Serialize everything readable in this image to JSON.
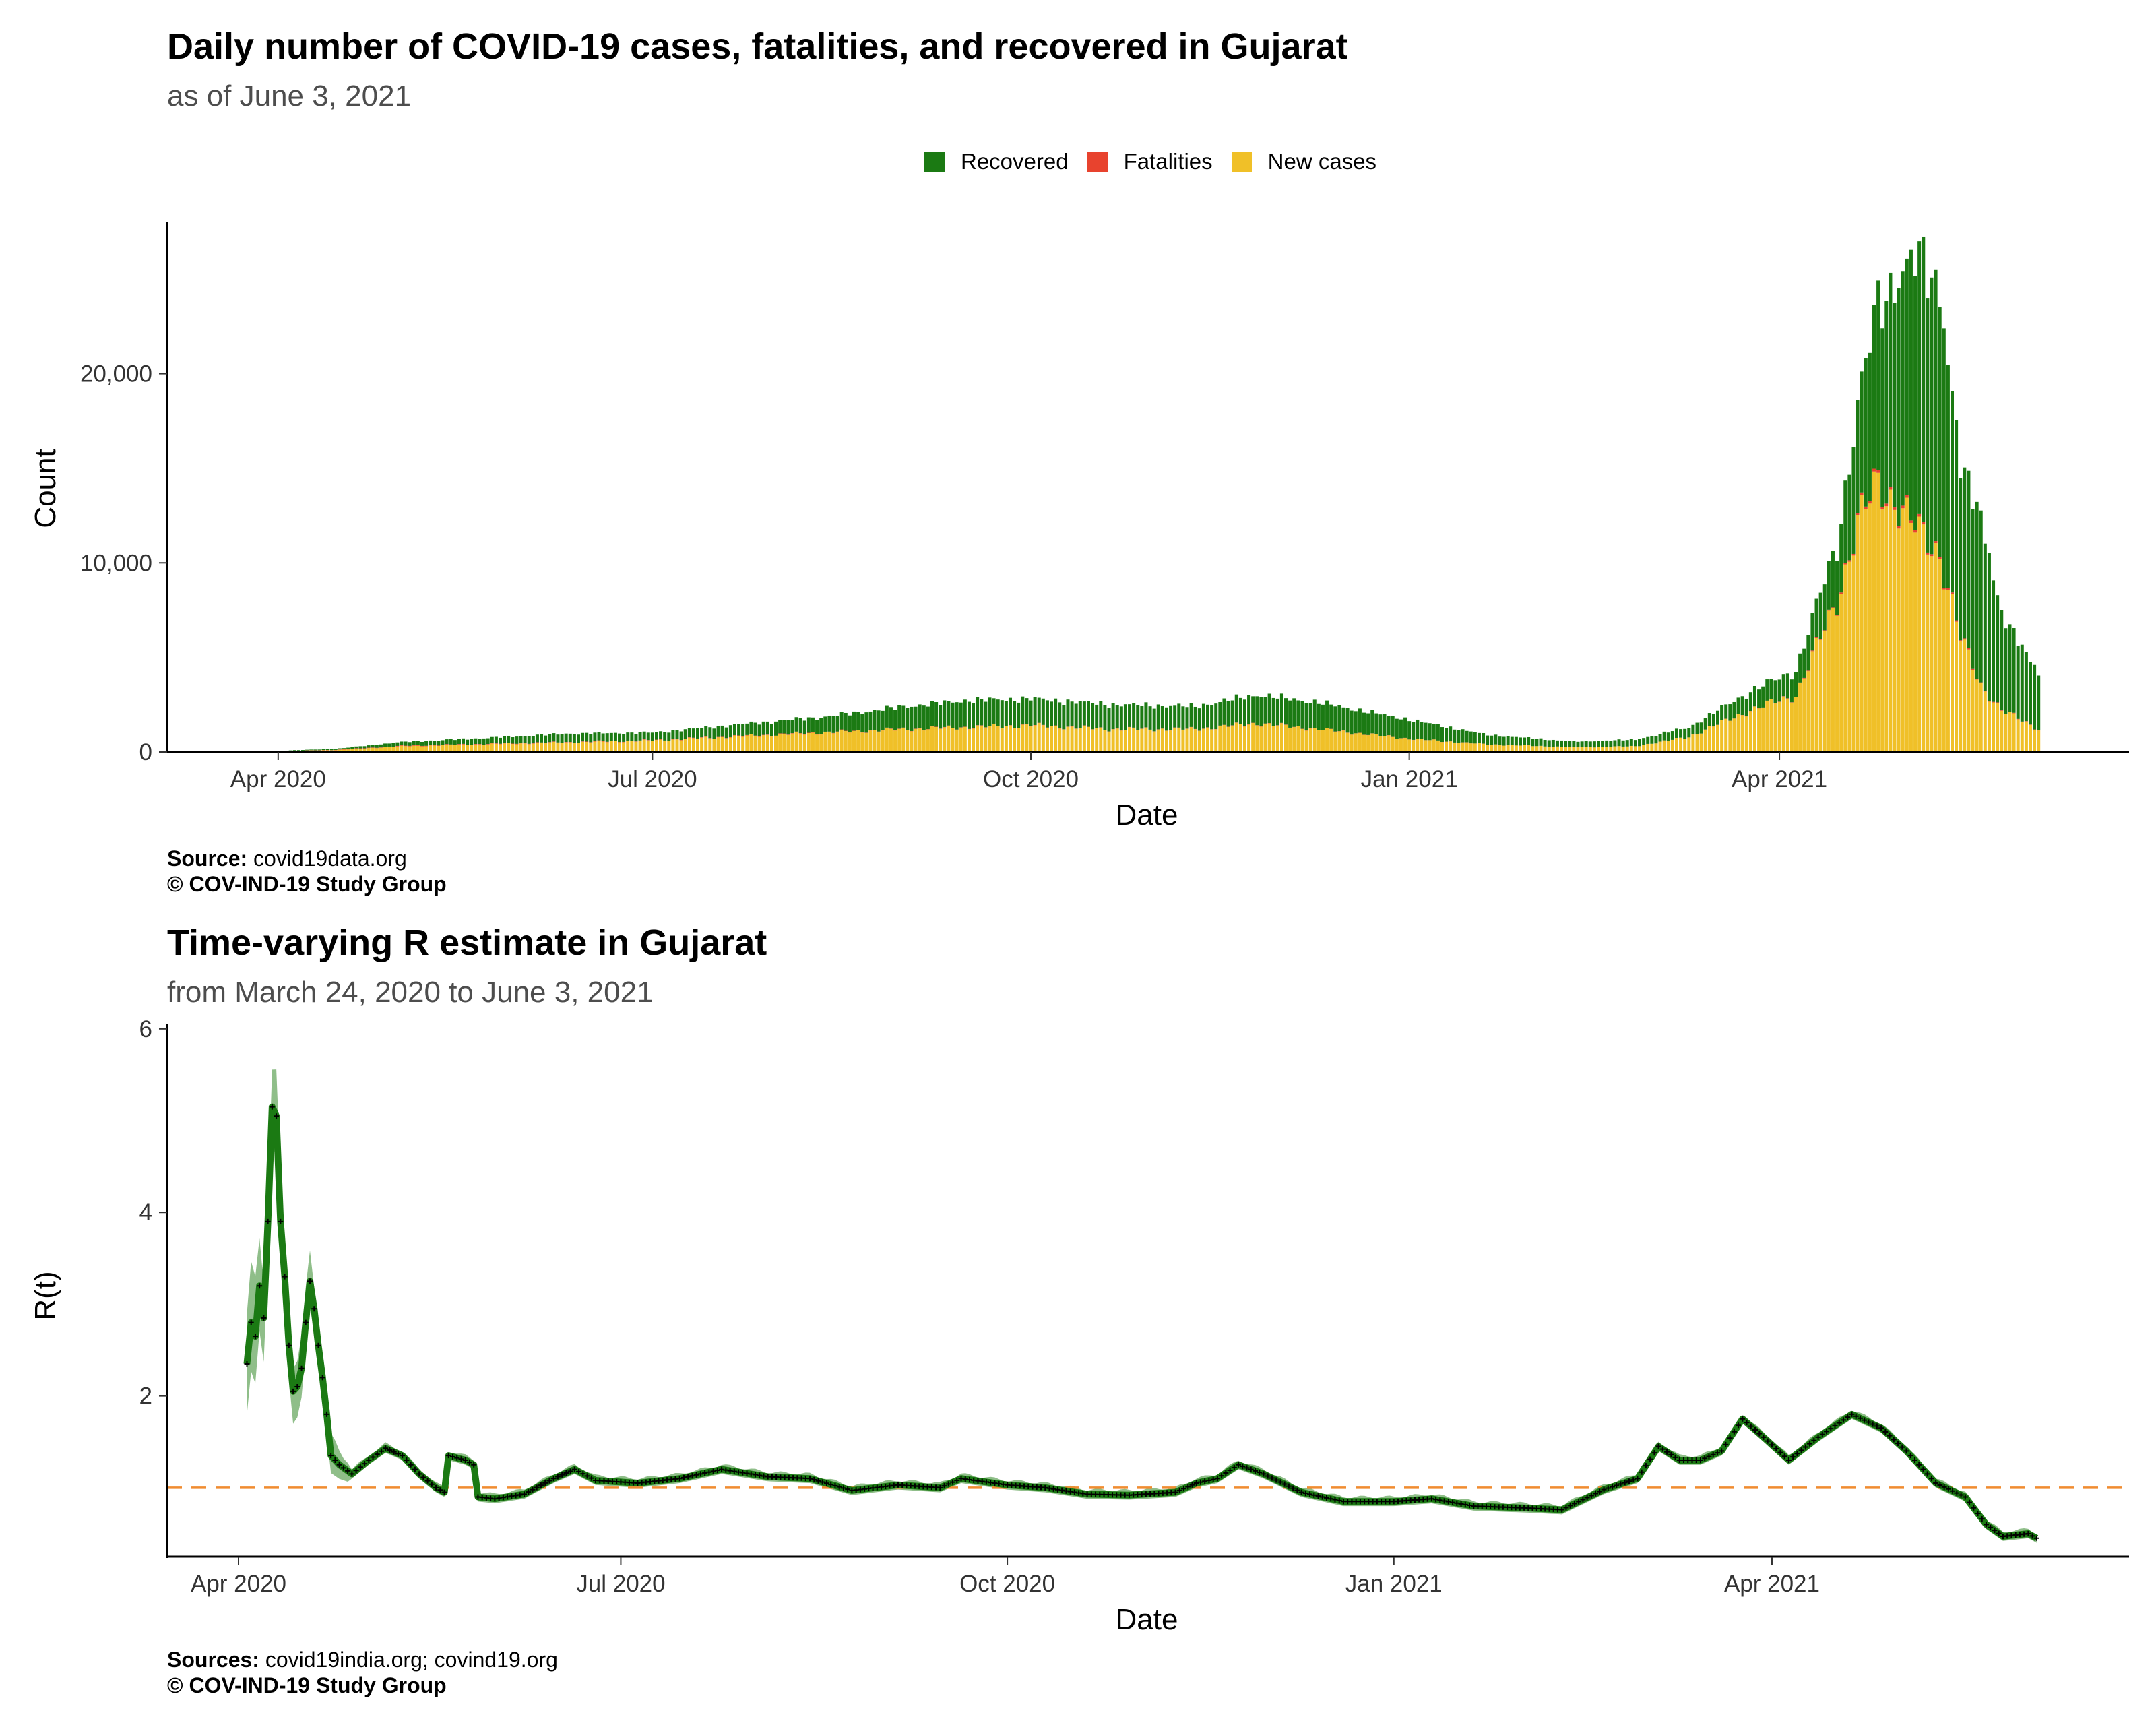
{
  "chart_data": [
    {
      "type": "bar",
      "stacked": true,
      "title": "Daily number of COVID-19 cases, fatalities, and recovered in Gujarat",
      "subtitle": "as of June  3, 2021",
      "xlabel": "Date",
      "ylabel": "Count",
      "x_ticks": [
        "Apr 2020",
        "Jul 2020",
        "Oct 2020",
        "Jan 2021",
        "Apr 2021"
      ],
      "y_ticks": [
        "0",
        "10,000",
        "20,000"
      ],
      "ylim": [
        0,
        28000
      ],
      "xlim": [
        "2020-03-05",
        "2021-06-25"
      ],
      "legend_position": "top",
      "legend": [
        "Recovered",
        "Fatalities",
        "New cases"
      ],
      "colors": {
        "Recovered": "#1b7a13",
        "Fatalities": "#e8432e",
        "New cases": "#f0c028"
      },
      "date_range": [
        "2020-03-24",
        "2021-06-03"
      ],
      "key_dates": [
        "2020-03-24",
        "2020-04-15",
        "2020-05-01",
        "2020-05-20",
        "2020-06-10",
        "2020-07-01",
        "2020-07-20",
        "2020-08-10",
        "2020-09-01",
        "2020-09-15",
        "2020-10-01",
        "2020-10-20",
        "2020-11-10",
        "2020-11-25",
        "2020-12-10",
        "2021-01-01",
        "2021-01-20",
        "2021-02-10",
        "2021-02-25",
        "2021-03-10",
        "2021-03-25",
        "2021-04-05",
        "2021-04-15",
        "2021-04-20",
        "2021-04-25",
        "2021-04-30",
        "2021-05-05",
        "2021-05-10",
        "2021-05-15",
        "2021-05-20",
        "2021-05-25",
        "2021-06-03"
      ],
      "series": [
        {
          "name": "New cases",
          "values": [
            5,
            100,
            300,
            400,
            500,
            600,
            800,
            1000,
            1200,
            1300,
            1400,
            1200,
            1200,
            1500,
            1200,
            700,
            400,
            250,
            300,
            800,
            2200,
            3000,
            8000,
            12000,
            14200,
            13000,
            11500,
            10500,
            6000,
            3500,
            2200,
            1200
          ]
        },
        {
          "name": "Fatalities",
          "values": [
            1,
            15,
            25,
            25,
            20,
            20,
            20,
            20,
            15,
            15,
            15,
            10,
            10,
            15,
            12,
            8,
            5,
            2,
            2,
            3,
            10,
            20,
            60,
            100,
            150,
            140,
            120,
            100,
            70,
            40,
            25,
            15
          ]
        },
        {
          "name": "Recovered",
          "values": [
            0,
            50,
            200,
            300,
            450,
            400,
            600,
            800,
            1200,
            1400,
            1400,
            1300,
            1200,
            1500,
            1400,
            1000,
            500,
            300,
            350,
            500,
            1000,
            1300,
            3000,
            6000,
            9500,
            12000,
            14500,
            14000,
            9000,
            9000,
            5000,
            3000
          ]
        }
      ]
    },
    {
      "type": "line",
      "title": "Time-varying R estimate in Gujarat",
      "subtitle": "from March 24, 2020 to June  3, 2021",
      "xlabel": "Date",
      "ylabel": "R(t)",
      "x_ticks": [
        "Apr 2020",
        "Jul 2020",
        "Oct 2020",
        "Jan 2021",
        "Apr 2021"
      ],
      "y_ticks": [
        "2",
        "4",
        "6"
      ],
      "ylim": [
        0.25,
        6.05
      ],
      "xlim": [
        "2020-03-15",
        "2021-06-25"
      ],
      "reference_line": {
        "y": 1,
        "style": "dashed",
        "color": "#f08c30"
      },
      "colors": {
        "line": "#1b7a13",
        "ci_band": "#6aa862",
        "markers": "#000000"
      },
      "points": [
        [
          "2020-04-03",
          2.35
        ],
        [
          "2020-04-04",
          2.8
        ],
        [
          "2020-04-05",
          2.65
        ],
        [
          "2020-04-06",
          3.2
        ],
        [
          "2020-04-07",
          2.85
        ],
        [
          "2020-04-08",
          3.9
        ],
        [
          "2020-04-09",
          5.15
        ],
        [
          "2020-04-10",
          5.05
        ],
        [
          "2020-04-11",
          3.9
        ],
        [
          "2020-04-12",
          3.3
        ],
        [
          "2020-04-13",
          2.55
        ],
        [
          "2020-04-14",
          2.05
        ],
        [
          "2020-04-15",
          2.1
        ],
        [
          "2020-04-16",
          2.3
        ],
        [
          "2020-04-17",
          2.8
        ],
        [
          "2020-04-18",
          3.25
        ],
        [
          "2020-04-19",
          2.95
        ],
        [
          "2020-04-20",
          2.55
        ],
        [
          "2020-04-21",
          2.2
        ],
        [
          "2020-04-22",
          1.8
        ],
        [
          "2020-04-23",
          1.35
        ],
        [
          "2020-04-25",
          1.25
        ],
        [
          "2020-04-28",
          1.15
        ],
        [
          "2020-05-02",
          1.3
        ],
        [
          "2020-05-06",
          1.43
        ],
        [
          "2020-05-10",
          1.35
        ],
        [
          "2020-05-14",
          1.15
        ],
        [
          "2020-05-18",
          1.0
        ],
        [
          "2020-05-20",
          0.95
        ],
        [
          "2020-05-21",
          1.35
        ],
        [
          "2020-05-25",
          1.3
        ],
        [
          "2020-05-27",
          1.25
        ],
        [
          "2020-05-28",
          0.9
        ],
        [
          "2020-06-01",
          0.88
        ],
        [
          "2020-06-08",
          0.93
        ],
        [
          "2020-06-15",
          1.1
        ],
        [
          "2020-06-20",
          1.2
        ],
        [
          "2020-06-25",
          1.08
        ],
        [
          "2020-07-05",
          1.05
        ],
        [
          "2020-07-15",
          1.1
        ],
        [
          "2020-07-25",
          1.2
        ],
        [
          "2020-08-05",
          1.12
        ],
        [
          "2020-08-15",
          1.1
        ],
        [
          "2020-08-25",
          0.97
        ],
        [
          "2020-09-05",
          1.03
        ],
        [
          "2020-09-15",
          1.0
        ],
        [
          "2020-09-20",
          1.1
        ],
        [
          "2020-10-01",
          1.03
        ],
        [
          "2020-10-10",
          1.0
        ],
        [
          "2020-10-20",
          0.93
        ],
        [
          "2020-10-30",
          0.92
        ],
        [
          "2020-11-10",
          0.95
        ],
        [
          "2020-11-15",
          1.05
        ],
        [
          "2020-11-20",
          1.1
        ],
        [
          "2020-11-25",
          1.25
        ],
        [
          "2020-12-01",
          1.15
        ],
        [
          "2020-12-10",
          0.95
        ],
        [
          "2020-12-20",
          0.85
        ],
        [
          "2021-01-01",
          0.85
        ],
        [
          "2021-01-10",
          0.88
        ],
        [
          "2021-01-20",
          0.8
        ],
        [
          "2021-02-01",
          0.78
        ],
        [
          "2021-02-10",
          0.76
        ],
        [
          "2021-02-20",
          0.98
        ],
        [
          "2021-02-28",
          1.1
        ],
        [
          "2021-03-05",
          1.45
        ],
        [
          "2021-03-10",
          1.3
        ],
        [
          "2021-03-15",
          1.3
        ],
        [
          "2021-03-20",
          1.4
        ],
        [
          "2021-03-25",
          1.75
        ],
        [
          "2021-03-30",
          1.55
        ],
        [
          "2021-04-05",
          1.3
        ],
        [
          "2021-04-12",
          1.55
        ],
        [
          "2021-04-20",
          1.8
        ],
        [
          "2021-04-27",
          1.65
        ],
        [
          "2021-05-03",
          1.4
        ],
        [
          "2021-05-10",
          1.05
        ],
        [
          "2021-05-17",
          0.9
        ],
        [
          "2021-05-22",
          0.6
        ],
        [
          "2021-05-26",
          0.47
        ],
        [
          "2021-06-01",
          0.5
        ],
        [
          "2021-06-03",
          0.45
        ]
      ]
    }
  ],
  "captions": {
    "top": {
      "label": "Source:",
      "text": "covid19data.org",
      "credit": "© COV-IND-19 Study Group"
    },
    "bottom": {
      "label": "Sources:",
      "text": "covid19india.org; covind19.org",
      "credit": "© COV-IND-19 Study Group"
    }
  }
}
